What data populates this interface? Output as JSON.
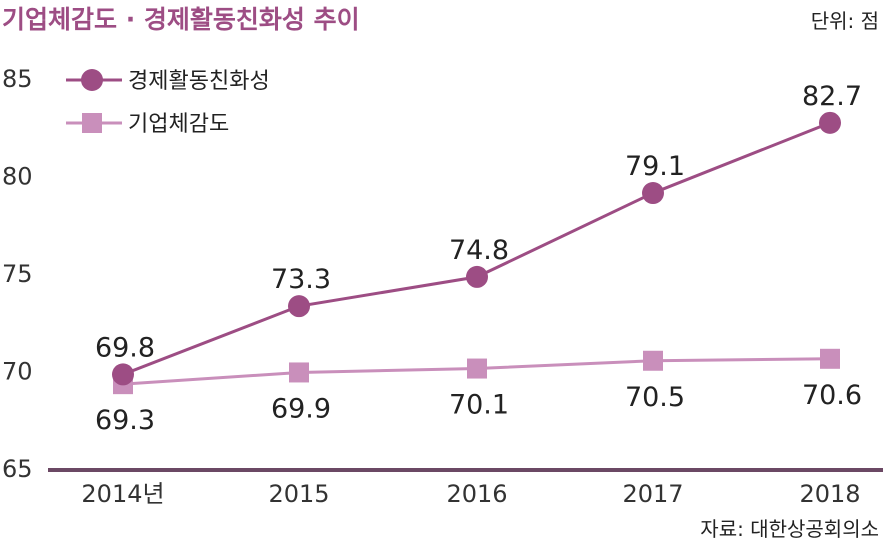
{
  "chart_data": {
    "type": "line",
    "title": "기업체감도 · 경제활동친화성 추이",
    "unit": "단위: 점",
    "source": "자료: 대한상공회의소",
    "categories": [
      "2014년",
      "2015",
      "2016",
      "2017",
      "2018"
    ],
    "ylim": [
      65,
      85
    ],
    "yticks": [
      "65",
      "70",
      "75",
      "80",
      "85"
    ],
    "grid": false,
    "legend_position": "top-left",
    "series": [
      {
        "name": "경제활동친화성",
        "values": [
          69.8,
          73.3,
          74.8,
          79.1,
          82.7
        ],
        "labels": [
          "69.8",
          "73.3",
          "74.8",
          "79.1",
          "82.7"
        ],
        "color": "#9d4d84",
        "marker": "circle"
      },
      {
        "name": "기업체감도",
        "values": [
          69.3,
          69.9,
          70.1,
          70.5,
          70.6
        ],
        "labels": [
          "69.3",
          "69.9",
          "70.1",
          "70.5",
          "70.6"
        ],
        "color": "#c98fbb",
        "marker": "square"
      }
    ],
    "axis_color": "#6b4864"
  }
}
